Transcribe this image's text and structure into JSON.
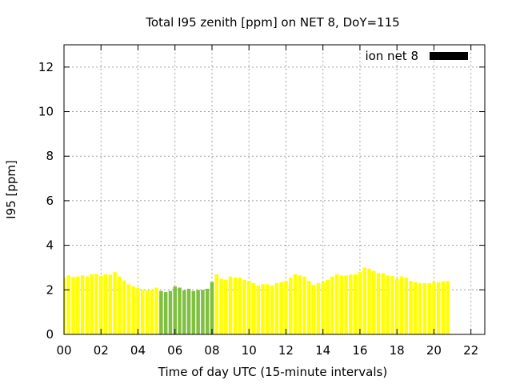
{
  "chart_data": {
    "type": "bar",
    "title": "Total I95 zenith [ppm] on NET 8, DoY=115",
    "xlabel": "Time of day UTC (15-minute intervals)",
    "ylabel": "I95 [ppm]",
    "ylim": [
      0,
      13
    ],
    "xlim": [
      0,
      22.75
    ],
    "yticks": [
      0,
      2,
      4,
      6,
      8,
      10,
      12
    ],
    "xticks": [
      "00",
      "02",
      "04",
      "06",
      "08",
      "10",
      "12",
      "14",
      "16",
      "18",
      "20",
      "22"
    ],
    "grid": true,
    "legend": {
      "position": "top-right",
      "label": "ion net 8",
      "color": "#000000"
    },
    "colors": {
      "default": "#ffff00",
      "highlight": "#80c040"
    },
    "interval_hours": 0.25,
    "values": [
      2.55,
      2.65,
      2.58,
      2.6,
      2.65,
      2.6,
      2.7,
      2.72,
      2.62,
      2.7,
      2.68,
      2.8,
      2.6,
      2.42,
      2.25,
      2.15,
      2.1,
      2.0,
      1.98,
      2.0,
      2.1,
      1.95,
      1.9,
      1.95,
      2.15,
      2.1,
      1.98,
      2.05,
      1.95,
      2.0,
      2.0,
      2.05,
      2.35,
      2.7,
      2.5,
      2.45,
      2.6,
      2.55,
      2.55,
      2.45,
      2.4,
      2.3,
      2.2,
      2.25,
      2.25,
      2.2,
      2.3,
      2.35,
      2.4,
      2.55,
      2.7,
      2.65,
      2.6,
      2.4,
      2.22,
      2.3,
      2.35,
      2.45,
      2.6,
      2.7,
      2.65,
      2.65,
      2.68,
      2.7,
      2.8,
      3.0,
      2.95,
      2.85,
      2.75,
      2.75,
      2.65,
      2.62,
      2.5,
      2.6,
      2.55,
      2.4,
      2.35,
      2.3,
      2.3,
      2.3,
      2.35,
      2.35,
      2.38,
      2.4
    ],
    "highlight_indices": [
      21,
      22,
      23,
      24,
      25,
      26,
      27,
      28,
      29,
      30,
      31,
      32
    ]
  }
}
